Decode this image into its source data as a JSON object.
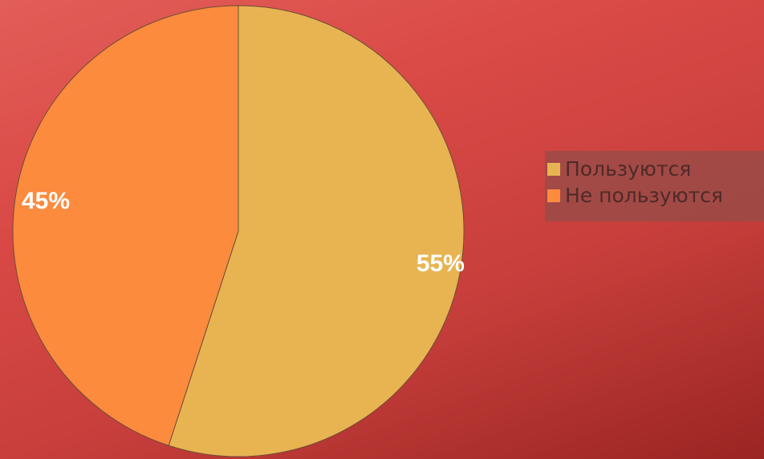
{
  "colors": {
    "slice_1": "#e8b452",
    "slice_2": "#fc8b3e",
    "slice_outline": "#6e4e34"
  },
  "chart_data": {
    "type": "pie",
    "title": "",
    "series": [
      {
        "categories": [
          "Пользуются",
          "Не пользуются"
        ],
        "values": [
          55,
          45
        ],
        "labels": [
          "55%",
          "45%"
        ]
      }
    ],
    "legend": {
      "position": "right",
      "items": [
        "Пользуются",
        "Не пользуются"
      ]
    }
  }
}
